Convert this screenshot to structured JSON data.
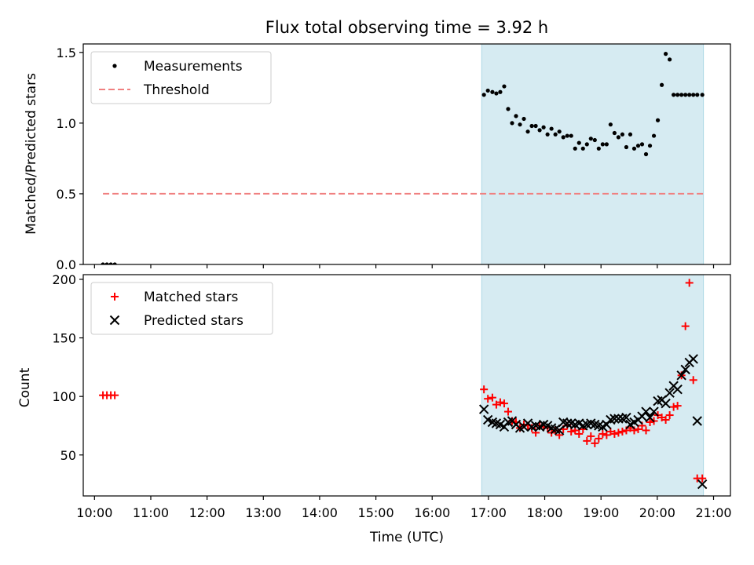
{
  "chart_data": [
    {
      "type": "scatter",
      "title": "Flux total observing time = 3.92 h",
      "ylabel": "Matched/Predicted stars",
      "xlim": [
        9.8,
        21.3
      ],
      "ylim": [
        0,
        1.56
      ],
      "yticks": [
        0.0,
        0.5,
        1.0,
        1.5
      ],
      "ytick_labels": [
        "0.0",
        "0.5",
        "1.0",
        "1.5"
      ],
      "shaded_span": [
        16.88,
        20.82
      ],
      "legend_position": "upper left",
      "series": [
        {
          "name": "Measurements",
          "kind": "points",
          "color": "#000000",
          "x": [
            10.15,
            10.22,
            10.29,
            10.36,
            16.92,
            16.99,
            17.07,
            17.14,
            17.21,
            17.28,
            17.35,
            17.42,
            17.49,
            17.56,
            17.63,
            17.7,
            17.77,
            17.84,
            17.91,
            17.98,
            18.05,
            18.12,
            18.19,
            18.26,
            18.33,
            18.4,
            18.47,
            18.54,
            18.61,
            18.68,
            18.75,
            18.82,
            18.89,
            18.96,
            19.03,
            19.1,
            19.17,
            19.24,
            19.31,
            19.38,
            19.45,
            19.52,
            19.59,
            19.66,
            19.73,
            19.8,
            19.87,
            19.94,
            20.01,
            20.08,
            20.15,
            20.22,
            20.29,
            20.36,
            20.43,
            20.5,
            20.57,
            20.64,
            20.71,
            20.8
          ],
          "y": [
            0.0,
            0.0,
            0.0,
            0.0,
            1.2,
            1.23,
            1.22,
            1.21,
            1.22,
            1.26,
            1.1,
            1.0,
            1.05,
            0.99,
            1.03,
            0.94,
            0.98,
            0.98,
            0.95,
            0.97,
            0.92,
            0.96,
            0.92,
            0.94,
            0.9,
            0.91,
            0.91,
            0.82,
            0.86,
            0.82,
            0.85,
            0.89,
            0.88,
            0.82,
            0.85,
            0.85,
            0.99,
            0.93,
            0.9,
            0.92,
            0.83,
            0.92,
            0.82,
            0.84,
            0.85,
            0.78,
            0.84,
            0.91,
            1.02,
            1.27,
            1.49,
            1.45,
            1.2,
            1.2,
            1.2,
            1.2,
            1.2,
            1.2,
            1.2,
            1.2
          ]
        },
        {
          "name": "Threshold",
          "kind": "dashed-line",
          "color": "#f08080",
          "x": [
            10.15,
            20.82
          ],
          "y": [
            0.5,
            0.5
          ]
        }
      ]
    },
    {
      "type": "scatter",
      "xlabel": "Time (UTC)",
      "ylabel": "Count",
      "xlim": [
        9.8,
        21.3
      ],
      "ylim": [
        15,
        204
      ],
      "xticks": [
        10,
        11,
        12,
        13,
        14,
        15,
        16,
        17,
        18,
        19,
        20,
        21
      ],
      "xtick_labels": [
        "10:00",
        "11:00",
        "12:00",
        "13:00",
        "14:00",
        "15:00",
        "16:00",
        "17:00",
        "18:00",
        "19:00",
        "20:00",
        "21:00"
      ],
      "yticks": [
        50,
        100,
        150,
        200
      ],
      "ytick_labels": [
        "50",
        "100",
        "150",
        "200"
      ],
      "shaded_span": [
        16.88,
        20.82
      ],
      "legend_position": "upper left",
      "series": [
        {
          "name": "Matched stars",
          "kind": "plus",
          "color": "#ff0000",
          "x": [
            10.15,
            10.22,
            10.29,
            10.36,
            16.92,
            16.99,
            17.07,
            17.14,
            17.21,
            17.28,
            17.35,
            17.42,
            17.49,
            17.56,
            17.63,
            17.7,
            17.77,
            17.84,
            17.91,
            17.98,
            18.05,
            18.12,
            18.19,
            18.26,
            18.33,
            18.4,
            18.47,
            18.54,
            18.61,
            18.68,
            18.75,
            18.82,
            18.89,
            18.96,
            19.03,
            19.1,
            19.17,
            19.24,
            19.31,
            19.38,
            19.45,
            19.52,
            19.59,
            19.66,
            19.73,
            19.8,
            19.87,
            19.94,
            20.01,
            20.08,
            20.15,
            20.22,
            20.29,
            20.36,
            20.43,
            20.5,
            20.57,
            20.64,
            20.71,
            20.8
          ],
          "y": [
            101,
            101,
            101,
            101,
            106,
            98,
            99,
            93,
            95,
            94,
            87,
            79,
            78,
            73,
            76,
            75,
            73,
            69,
            75,
            74,
            73,
            69,
            71,
            67,
            72,
            75,
            70,
            71,
            68,
            72,
            62,
            66,
            60,
            64,
            68,
            67,
            70,
            68,
            69,
            70,
            71,
            73,
            71,
            72,
            75,
            71,
            78,
            79,
            84,
            82,
            80,
            84,
            91,
            92,
            118,
            160,
            197,
            114,
            30,
            30
          ]
        },
        {
          "name": "Predicted stars",
          "kind": "cross",
          "color": "#000000",
          "x": [
            16.92,
            16.99,
            17.07,
            17.14,
            17.21,
            17.28,
            17.35,
            17.42,
            17.49,
            17.56,
            17.63,
            17.7,
            17.77,
            17.84,
            17.91,
            17.98,
            18.05,
            18.12,
            18.19,
            18.26,
            18.33,
            18.4,
            18.47,
            18.54,
            18.61,
            18.68,
            18.75,
            18.82,
            18.89,
            18.96,
            19.03,
            19.1,
            19.17,
            19.24,
            19.31,
            19.38,
            19.45,
            19.52,
            19.59,
            19.66,
            19.73,
            19.8,
            19.87,
            19.94,
            20.01,
            20.08,
            20.15,
            20.22,
            20.29,
            20.36,
            20.43,
            20.5,
            20.57,
            20.64,
            20.71,
            20.8
          ],
          "y": [
            89,
            80,
            78,
            77,
            76,
            74,
            78,
            79,
            76,
            73,
            74,
            77,
            74,
            75,
            74,
            76,
            75,
            73,
            72,
            71,
            78,
            77,
            77,
            76,
            77,
            75,
            76,
            77,
            76,
            75,
            74,
            76,
            80,
            81,
            81,
            81,
            82,
            76,
            78,
            80,
            83,
            87,
            82,
            87,
            96,
            97,
            94,
            103,
            109,
            106,
            118,
            123,
            129,
            132,
            79,
            25
          ]
        }
      ]
    }
  ]
}
